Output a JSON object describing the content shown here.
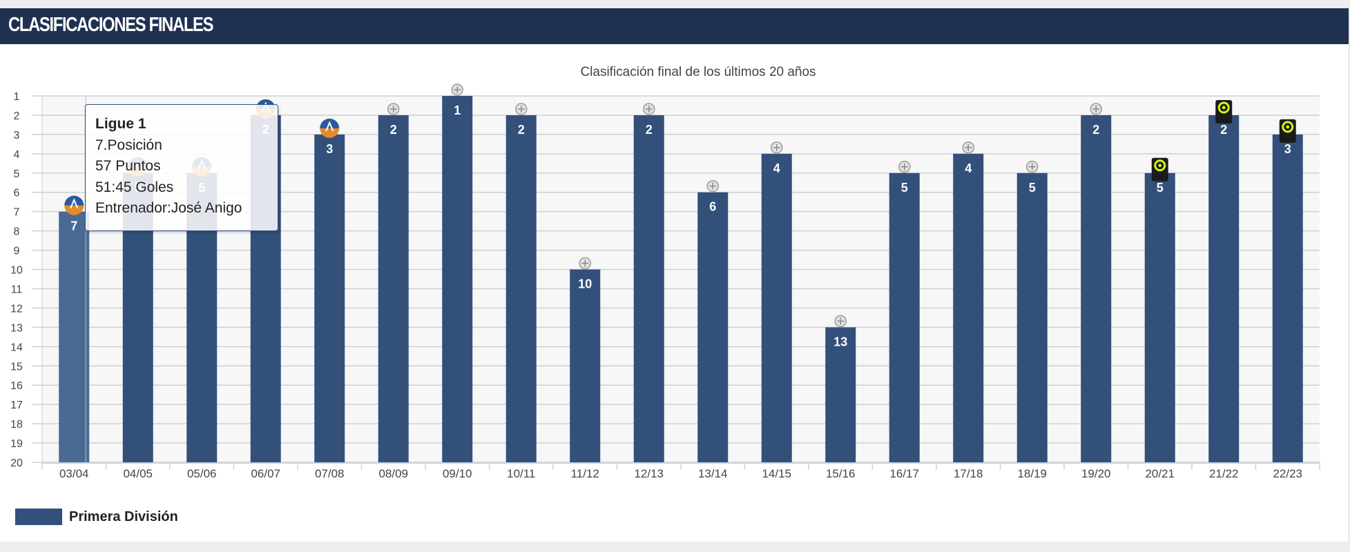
{
  "header": {
    "title": "Clasificaciones finales"
  },
  "chart_data": {
    "type": "bar",
    "title": "Clasificación final de los últimos 20 años",
    "xlabel": "",
    "ylabel": "",
    "y_axis_reversed": true,
    "ylim": [
      1,
      20
    ],
    "y_ticks": [
      1,
      2,
      3,
      4,
      5,
      6,
      7,
      8,
      9,
      10,
      11,
      12,
      13,
      14,
      15,
      16,
      17,
      18,
      19,
      20
    ],
    "categories": [
      "03/04",
      "04/05",
      "05/06",
      "06/07",
      "07/08",
      "08/09",
      "09/10",
      "10/11",
      "11/12",
      "12/13",
      "13/14",
      "14/15",
      "15/16",
      "16/17",
      "17/18",
      "18/19",
      "19/20",
      "20/21",
      "21/22",
      "22/23"
    ],
    "series": [
      {
        "name": "Primera División",
        "values": [
          7,
          5,
          5,
          2,
          3,
          2,
          1,
          2,
          10,
          2,
          6,
          4,
          13,
          5,
          4,
          5,
          2,
          5,
          2,
          3
        ]
      }
    ],
    "bar_color": "#33507a",
    "highlight_color": "#4a6a94",
    "highlighted_index": 0,
    "league_icons": [
      "ligue1-old-icon",
      "ligue1-old-icon",
      "ligue1-old-icon",
      "ligue1-old-icon",
      "ligue1-old-icon",
      "ligue1-crest-icon",
      "ligue1-crest-icon",
      "ligue1-crest-icon",
      "ligue1-crest-icon",
      "ligue1-crest-icon",
      "ligue1-crest-icon",
      "ligue1-crest-icon",
      "ligue1-crest-icon",
      "ligue1-crest-icon",
      "ligue1-crest-icon",
      "ligue1-crest-icon",
      "ligue1-crest-icon",
      "ligue1-new-icon",
      "ligue1-new-icon",
      "ligue1-new-icon"
    ],
    "legend": {
      "position": "bottom-left"
    },
    "grid": true
  },
  "tooltip": {
    "title": "Ligue 1",
    "position": "7.Posición",
    "points": "57 Puntos",
    "goals": "51:45 Goles",
    "coach": "Entrenador:José Anigo"
  }
}
